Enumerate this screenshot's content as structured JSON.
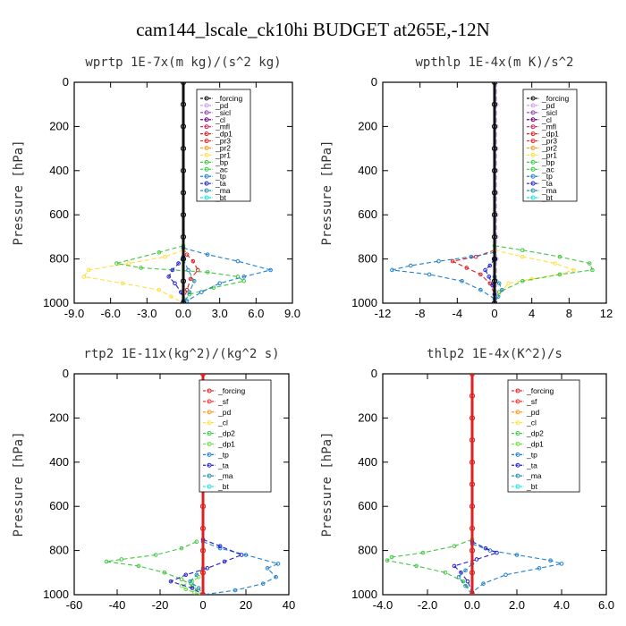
{
  "figure_title": "cam144_lscale_ck10hi  BUDGET at265E,-12N",
  "chart_data": [
    {
      "type": "line",
      "title": "wprtp  1E-7x(m kg)/(s^2 kg)",
      "ylabel": "Pressure [hPa]",
      "xlim": [
        -9.0,
        9.0
      ],
      "ylim": [
        1000,
        0
      ],
      "xticks": [
        "-9.0",
        "-6.0",
        "-3.0",
        "0.0",
        "3.0",
        "6.0",
        "9.0"
      ],
      "yticks": [
        "0",
        "200",
        "400",
        "600",
        "800",
        "1000"
      ],
      "legend": [
        "_forcing",
        "_pd",
        "_sicl",
        "_cl",
        "_mfl",
        "_dp1",
        "_pr3",
        "_pr2",
        "_pr1",
        "_bp",
        "_ac",
        "_tp",
        "_ta",
        "_ma",
        "_bt"
      ],
      "colors": [
        "#111111",
        "#c8a0e8",
        "#9040b0",
        "#6a0080",
        "#cc2060",
        "#e02020",
        "#ff2020",
        "#ff9a20",
        "#ffe040",
        "#40c840",
        "#30d040",
        "#2080d0",
        "#2020d0",
        "#2890b0",
        "#20e0e0"
      ],
      "series": [
        {
          "name": "_forcing",
          "x": [
            0,
            0,
            0,
            0,
            0,
            0,
            0,
            0,
            0,
            0,
            0
          ],
          "y": [
            0,
            100,
            200,
            300,
            400,
            500,
            600,
            700,
            800,
            900,
            1000
          ]
        },
        {
          "name": "_dp1",
          "x": [
            0,
            0.3,
            0.8,
            1.2,
            0.6,
            0.3,
            0
          ],
          "y": [
            750,
            780,
            810,
            850,
            890,
            940,
            990
          ]
        },
        {
          "name": "_pr1",
          "x": [
            0,
            -1.5,
            -4.5,
            -7.8,
            -8.2,
            -5.0,
            -2.0,
            -1.0,
            0
          ],
          "y": [
            760,
            790,
            820,
            850,
            880,
            910,
            940,
            970,
            1000
          ]
        },
        {
          "name": "_bp",
          "x": [
            0,
            -2.0,
            -5.5,
            -3.5,
            2.0,
            4.5,
            5.0,
            2.5,
            0.5,
            0
          ],
          "y": [
            740,
            770,
            820,
            840,
            860,
            880,
            900,
            930,
            960,
            1000
          ]
        },
        {
          "name": "_tp",
          "x": [
            0,
            2.0,
            4.5,
            7.2,
            5.0,
            3.0,
            1.5,
            0.3
          ],
          "y": [
            750,
            780,
            810,
            850,
            880,
            910,
            950,
            990
          ]
        },
        {
          "name": "_ta",
          "x": [
            0,
            -0.4,
            -0.9,
            -1.2,
            -0.7,
            -0.2,
            0
          ],
          "y": [
            790,
            820,
            850,
            880,
            910,
            950,
            990
          ]
        },
        {
          "name": "_ma",
          "x": [
            0,
            0.4,
            0.9,
            0.5,
            0.1
          ],
          "y": [
            800,
            850,
            900,
            950,
            990
          ]
        }
      ]
    },
    {
      "type": "line",
      "title": "wpthlp  1E-4x(m K)/s^2",
      "ylabel": "Pressure [hPa]",
      "xlim": [
        -12,
        12
      ],
      "ylim": [
        1000,
        0
      ],
      "xticks": [
        "-12",
        "-8",
        "-4",
        "0",
        "4",
        "8",
        "12"
      ],
      "yticks": [
        "0",
        "200",
        "400",
        "600",
        "800",
        "1000"
      ],
      "legend": [
        "_forcing",
        "_pd",
        "_sicl",
        "_cl",
        "_mfl",
        "_dp1",
        "_pr3",
        "_pr2",
        "_pr1",
        "_bp",
        "_ac",
        "_tp",
        "_ta",
        "_ma",
        "_bt"
      ],
      "colors": [
        "#111111",
        "#c8a0e8",
        "#9040b0",
        "#6a0080",
        "#cc2060",
        "#e02020",
        "#ff2020",
        "#ff9a20",
        "#ffe040",
        "#40c840",
        "#30d040",
        "#2080d0",
        "#2020d0",
        "#2890b0",
        "#20e0e0"
      ],
      "series": [
        {
          "name": "_forcing",
          "x": [
            0,
            0,
            0,
            0,
            0,
            0,
            0,
            0,
            0,
            0,
            0
          ],
          "y": [
            0,
            100,
            200,
            300,
            400,
            500,
            600,
            700,
            800,
            900,
            1000
          ]
        },
        {
          "name": "_pd",
          "x": [
            0.2,
            0.2,
            0.2,
            0.2,
            0.2,
            0.2,
            0.2,
            0.2,
            0.2,
            0.2,
            0.2
          ],
          "y": [
            0,
            100,
            200,
            300,
            400,
            500,
            600,
            700,
            800,
            900,
            1000
          ]
        },
        {
          "name": "_dp1",
          "x": [
            0,
            -2.0,
            -4.5,
            -3.0,
            -1.5,
            -0.5,
            0
          ],
          "y": [
            760,
            790,
            810,
            840,
            870,
            910,
            960
          ]
        },
        {
          "name": "_pr1",
          "x": [
            0,
            3.0,
            6.5,
            8.5,
            7.0,
            4.0,
            1.5,
            0.5
          ],
          "y": [
            760,
            790,
            820,
            850,
            870,
            890,
            910,
            960
          ]
        },
        {
          "name": "_bp",
          "x": [
            0,
            3.0,
            7.0,
            10.2,
            10.5,
            7.0,
            3.0,
            0.5
          ],
          "y": [
            740,
            760,
            790,
            820,
            850,
            870,
            900,
            950
          ]
        },
        {
          "name": "_tp",
          "x": [
            0,
            -2.5,
            -6.0,
            -9.0,
            -11.0,
            -7.0,
            -3.5,
            -1.5,
            0
          ],
          "y": [
            770,
            790,
            810,
            830,
            850,
            870,
            900,
            940,
            980
          ]
        },
        {
          "name": "_ta",
          "x": [
            0,
            -0.5,
            -1.0,
            -0.6,
            -0.2,
            0
          ],
          "y": [
            800,
            830,
            850,
            880,
            920,
            960
          ]
        },
        {
          "name": "_ma",
          "x": [
            0,
            0.5,
            0.8,
            0.4,
            0
          ],
          "y": [
            880,
            910,
            940,
            970,
            1000
          ]
        }
      ]
    },
    {
      "type": "line",
      "title": "rtp2  1E-11x(kg^2)/(kg^2 s)",
      "ylabel": "Pressure [hPa]",
      "xlim": [
        -60,
        40
      ],
      "ylim": [
        1000,
        0
      ],
      "xticks": [
        "-60",
        "-40",
        "-20",
        "0",
        "20",
        "40"
      ],
      "yticks": [
        "0",
        "200",
        "400",
        "600",
        "800",
        "1000"
      ],
      "legend": [
        "_forcing",
        "_sf",
        "_pd",
        "_cl",
        "_dp2",
        "_dp1",
        "_tp",
        "_ta",
        "_ma",
        "_bt"
      ],
      "colors": [
        "#e02020",
        "#ff3030",
        "#ff9a20",
        "#ffe040",
        "#40c840",
        "#70e040",
        "#2080d0",
        "#2020d0",
        "#2890b0",
        "#20e0e0"
      ],
      "series": [
        {
          "name": "_forcing",
          "x": [
            0,
            0,
            0,
            0,
            0,
            0,
            0,
            0,
            0,
            0,
            0
          ],
          "y": [
            0,
            100,
            200,
            300,
            400,
            500,
            600,
            700,
            800,
            900,
            1000
          ]
        },
        {
          "name": "_dp2",
          "x": [
            -3,
            -10,
            -22,
            -38,
            -45,
            -30,
            -18,
            -10,
            -5,
            0
          ],
          "y": [
            760,
            790,
            820,
            840,
            850,
            870,
            900,
            930,
            960,
            1000
          ]
        },
        {
          "name": "_dp1",
          "x": [
            -2,
            -5,
            -10,
            -8,
            -4,
            -1
          ],
          "y": [
            920,
            940,
            960,
            975,
            990,
            1000
          ]
        },
        {
          "name": "_tp",
          "x": [
            0,
            8,
            20,
            35,
            30,
            34,
            28,
            15,
            0
          ],
          "y": [
            760,
            790,
            820,
            860,
            880,
            920,
            950,
            980,
            1000
          ]
        },
        {
          "name": "_ta",
          "x": [
            0,
            8,
            18,
            10,
            2,
            -8,
            -15,
            -5,
            0
          ],
          "y": [
            750,
            780,
            820,
            850,
            880,
            910,
            940,
            970,
            1000
          ]
        },
        {
          "name": "_ma",
          "x": [
            0,
            -3,
            -6,
            -2,
            0
          ],
          "y": [
            880,
            910,
            940,
            970,
            1000
          ]
        }
      ]
    },
    {
      "type": "line",
      "title": "thlp2  1E-4x(K^2)/s",
      "ylabel": "Pressure [hPa]",
      "xlim": [
        -4.0,
        6.0
      ],
      "ylim": [
        1000,
        0
      ],
      "xticks": [
        "-4.0",
        "-2.0",
        "0.0",
        "2.0",
        "4.0",
        "6.0"
      ],
      "yticks": [
        "0",
        "200",
        "400",
        "600",
        "800",
        "1000"
      ],
      "legend": [
        "_forcing",
        "_sf",
        "_pd",
        "_cl",
        "_dp2",
        "_dp1",
        "_tp",
        "_ta",
        "_ma",
        "_bt"
      ],
      "colors": [
        "#e02020",
        "#ff3030",
        "#ff9a20",
        "#ffe040",
        "#40c840",
        "#70e040",
        "#2080d0",
        "#2020d0",
        "#2890b0",
        "#20e0e0"
      ],
      "series": [
        {
          "name": "_forcing",
          "x": [
            0,
            0,
            0,
            0,
            0,
            0,
            0,
            0,
            0,
            0,
            0
          ],
          "y": [
            0,
            100,
            200,
            300,
            400,
            500,
            600,
            700,
            800,
            900,
            1000
          ]
        },
        {
          "name": "_dp2",
          "x": [
            0,
            -0.8,
            -2.2,
            -3.6,
            -3.8,
            -2.5,
            -1.2,
            -0.4,
            0
          ],
          "y": [
            750,
            780,
            810,
            830,
            845,
            870,
            900,
            940,
            990
          ]
        },
        {
          "name": "_tp",
          "x": [
            0,
            0.8,
            2.0,
            3.5,
            4.0,
            3.0,
            1.5,
            0.5,
            0
          ],
          "y": [
            770,
            800,
            820,
            845,
            860,
            880,
            910,
            950,
            990
          ]
        },
        {
          "name": "_ta",
          "x": [
            0,
            0.6,
            1.1,
            0.2,
            -0.8,
            -0.5,
            -0.2,
            0
          ],
          "y": [
            760,
            790,
            810,
            840,
            870,
            900,
            940,
            990
          ]
        },
        {
          "name": "_ma",
          "x": [
            0,
            -0.3,
            -0.6,
            -0.3,
            0
          ],
          "y": [
            860,
            890,
            920,
            960,
            1000
          ]
        }
      ]
    }
  ]
}
